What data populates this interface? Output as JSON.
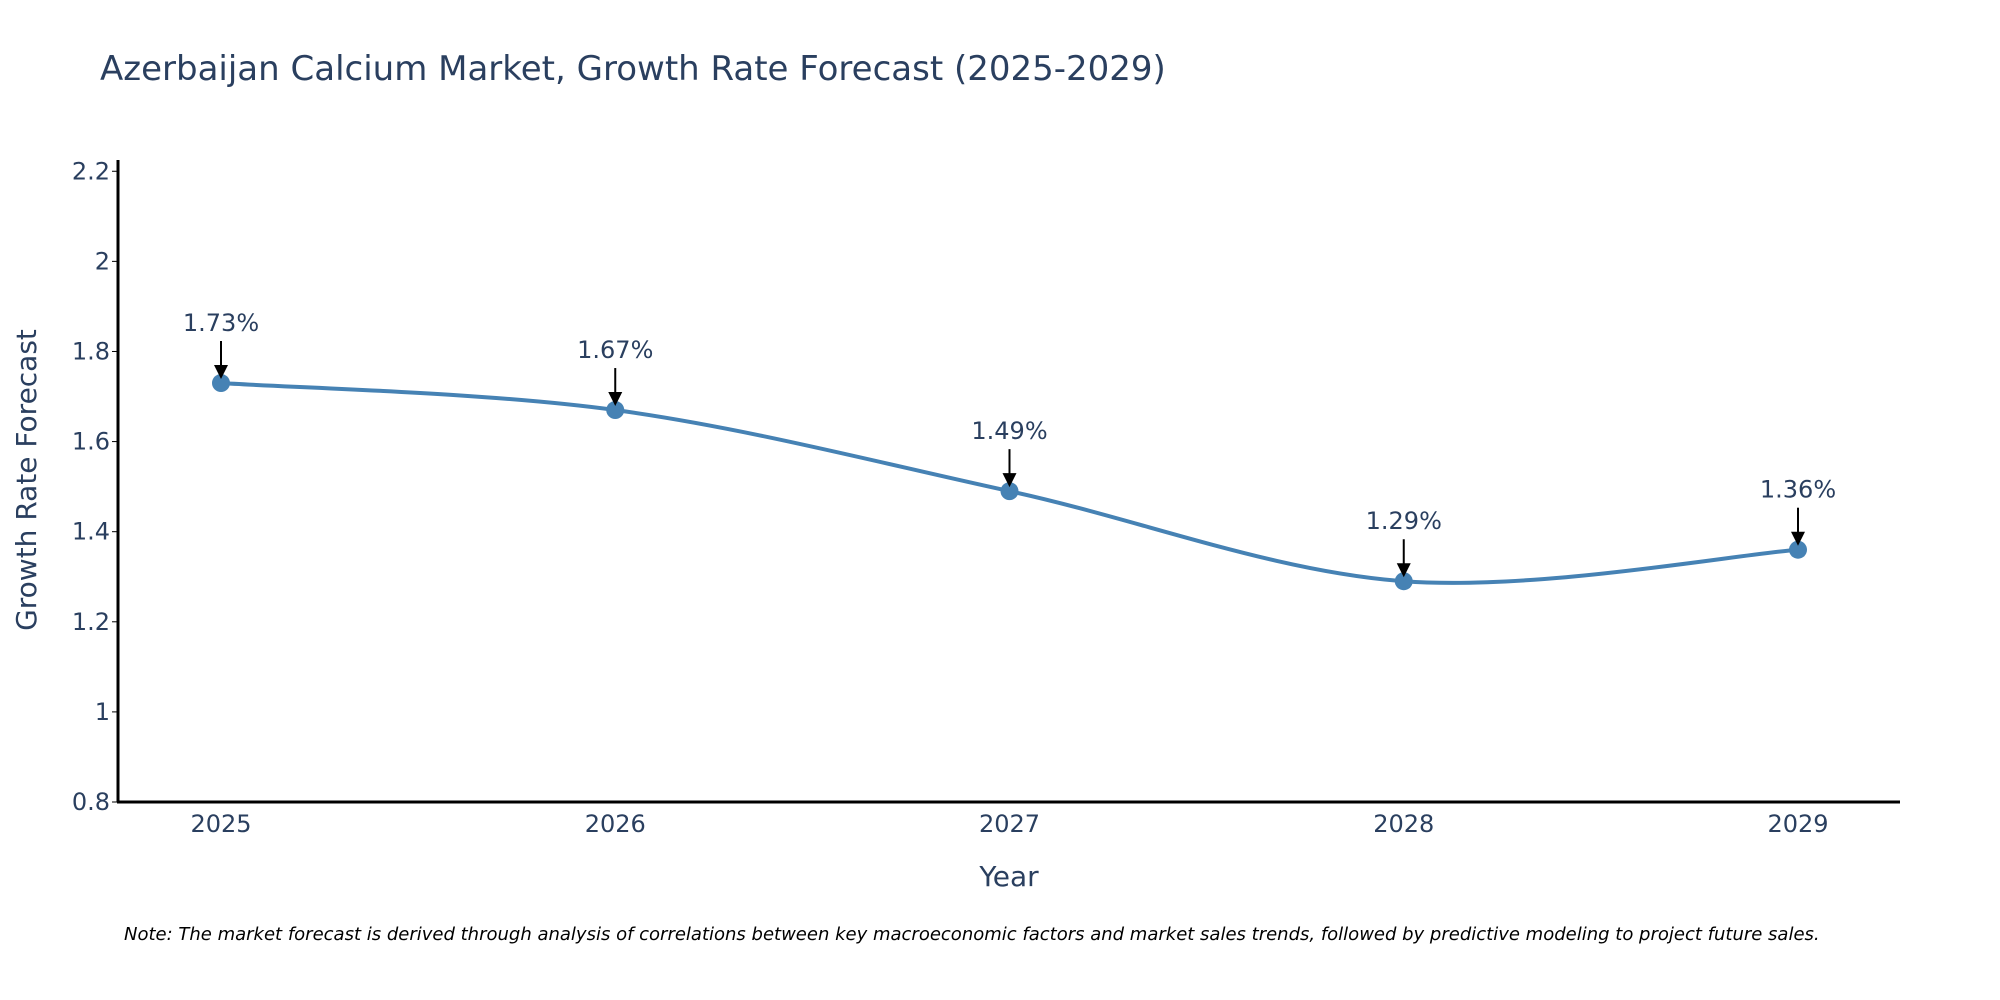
{
  "chart_data": {
    "type": "line",
    "title": "Azerbaijan Calcium Market, Growth Rate Forecast (2025-2029)",
    "xlabel": "Year",
    "ylabel": "Growth Rate Forecast",
    "categories": [
      "2025",
      "2026",
      "2027",
      "2028",
      "2029"
    ],
    "values": [
      1.73,
      1.67,
      1.49,
      1.29,
      1.36
    ],
    "data_labels": [
      "1.73%",
      "1.67%",
      "1.49%",
      "1.29%",
      "1.36%"
    ],
    "ylim": [
      0.8,
      2.225
    ],
    "yticks": [
      0.8,
      1,
      1.2,
      1.4,
      1.6,
      1.8,
      2,
      2.2
    ],
    "ytick_labels": [
      "0.8",
      "1",
      "1.2",
      "1.4",
      "1.6",
      "1.8",
      "2",
      "2.2"
    ],
    "grid": false,
    "line_style": "spline",
    "series_color": "#4682b4",
    "note": "Note: The market forecast is derived through analysis of correlations between key macroeconomic factors and market sales trends, followed by predictive modeling to project future sales."
  }
}
